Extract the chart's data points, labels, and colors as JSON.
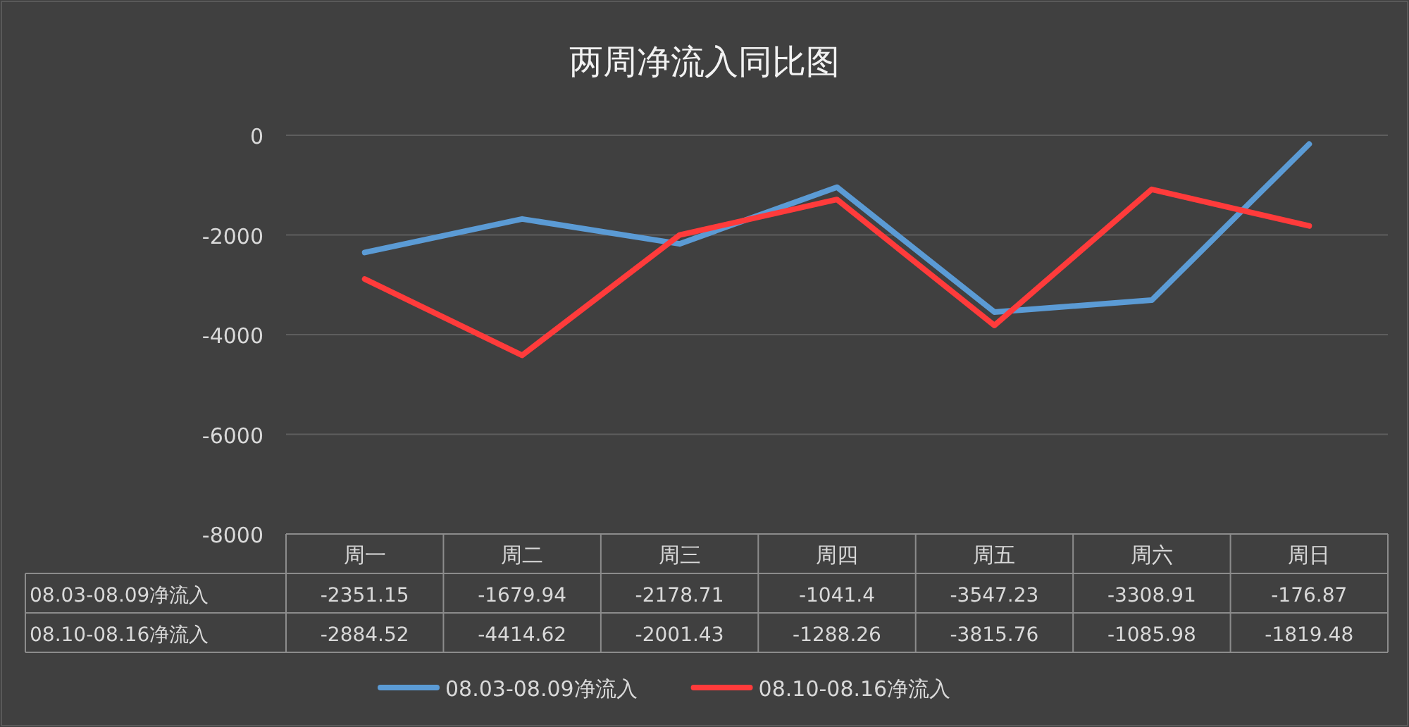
{
  "chart_data": {
    "type": "line",
    "title": "两周净流入同比图",
    "categories": [
      "周一",
      "周二",
      "周三",
      "周四",
      "周五",
      "周六",
      "周日"
    ],
    "series": [
      {
        "name": "08.03-08.09净流入",
        "color": "#5b9bd5",
        "values": [
          -2351.15,
          -1679.94,
          -2178.71,
          -1041.4,
          -3547.23,
          -3308.91,
          -176.87
        ]
      },
      {
        "name": "08.10-08.16净流入",
        "color": "#ff3b3b",
        "values": [
          -2884.52,
          -4414.62,
          -2001.43,
          -1288.26,
          -3815.76,
          -1085.98,
          -1819.48
        ]
      }
    ],
    "ylim": [
      -8000,
      0
    ],
    "yticks": [
      0,
      -2000,
      -4000,
      -6000,
      -8000
    ],
    "grid": "y",
    "legend": "bottom",
    "data_labels": true
  }
}
